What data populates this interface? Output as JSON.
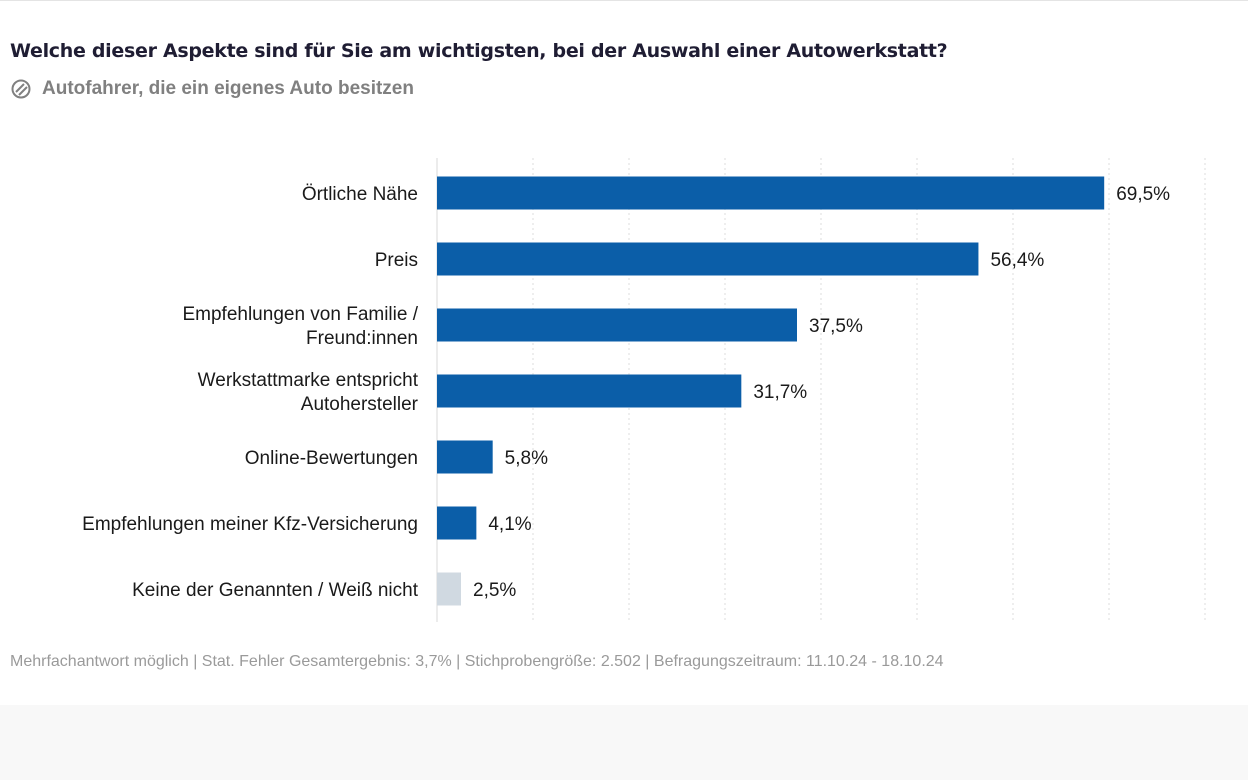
{
  "chart_data": {
    "type": "bar",
    "orientation": "horizontal",
    "title": "Welche dieser Aspekte sind für Sie am wichtigsten, bei der Auswahl einer Autowerkstatt?",
    "subtitle": "Autofahrer, die ein eigenes Auto besitzen",
    "categories": [
      [
        "Örtliche Nähe"
      ],
      [
        "Preis"
      ],
      [
        "Empfehlungen von Familie /",
        "Freund:innen"
      ],
      [
        "Werkstattmarke entspricht",
        "Autohersteller"
      ],
      [
        "Online-Bewertungen"
      ],
      [
        "Empfehlungen meiner Kfz-Versicherung"
      ],
      [
        "Keine der Genannten / Weiß nicht"
      ]
    ],
    "values": [
      69.5,
      56.4,
      37.5,
      31.7,
      5.8,
      4.1,
      2.5
    ],
    "data_labels": [
      "69,5%",
      "56,4%",
      "37,5%",
      "31,7%",
      "5,8%",
      "4,1%",
      "2,5%"
    ],
    "colors": [
      "#0b5ea8",
      "#0b5ea8",
      "#0b5ea8",
      "#0b5ea8",
      "#0b5ea8",
      "#0b5ea8",
      "#d0d9e1"
    ],
    "xlim": [
      0,
      80
    ],
    "grid_step": 10,
    "grid": true,
    "grid_style": "dotted",
    "xlabel": "",
    "ylabel": ""
  },
  "subtitle_icon": "target-group-icon",
  "footer": "Mehrfachantwort möglich | Stat. Fehler Gesamtergebnis: 3,7% | Stichprobengröße: 2.502 | Befragungszeitraum: 11.10.24 - 18.10.24"
}
